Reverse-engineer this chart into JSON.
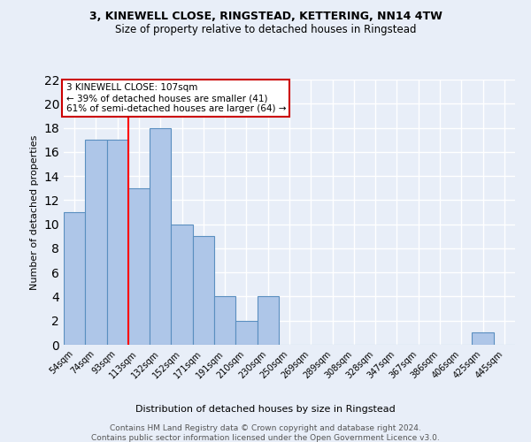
{
  "title1": "3, KINEWELL CLOSE, RINGSTEAD, KETTERING, NN14 4TW",
  "title2": "Size of property relative to detached houses in Ringstead",
  "xlabel": "Distribution of detached houses by size in Ringstead",
  "ylabel": "Number of detached properties",
  "footer1": "Contains HM Land Registry data © Crown copyright and database right 2024.",
  "footer2": "Contains public sector information licensed under the Open Government Licence v3.0.",
  "annotation_line1": "3 KINEWELL CLOSE: 107sqm",
  "annotation_line2": "← 39% of detached houses are smaller (41)",
  "annotation_line3": "61% of semi-detached houses are larger (64) →",
  "bar_labels": [
    "54sqm",
    "74sqm",
    "93sqm",
    "113sqm",
    "132sqm",
    "152sqm",
    "171sqm",
    "191sqm",
    "210sqm",
    "230sqm",
    "250sqm",
    "269sqm",
    "289sqm",
    "308sqm",
    "328sqm",
    "347sqm",
    "367sqm",
    "386sqm",
    "406sqm",
    "425sqm",
    "445sqm"
  ],
  "bar_values": [
    11,
    17,
    17,
    13,
    18,
    10,
    9,
    4,
    2,
    4,
    0,
    0,
    0,
    0,
    0,
    0,
    0,
    0,
    0,
    1,
    0
  ],
  "bar_color": "#AEC6E8",
  "bar_edge_color": "#5A8FC0",
  "red_line_x": 2.5,
  "ylim": [
    0,
    22
  ],
  "yticks": [
    0,
    2,
    4,
    6,
    8,
    10,
    12,
    14,
    16,
    18,
    20,
    22
  ],
  "bg_color": "#E8EEF8",
  "grid_color": "#FFFFFF",
  "annotation_box_color": "#FFFFFF",
  "annotation_box_edge_color": "#CC0000",
  "title1_fontsize": 9,
  "title2_fontsize": 8.5,
  "ylabel_fontsize": 8,
  "xlabel_fontsize": 8,
  "tick_fontsize": 7,
  "footer_fontsize": 6.5,
  "annotation_fontsize": 7.5
}
